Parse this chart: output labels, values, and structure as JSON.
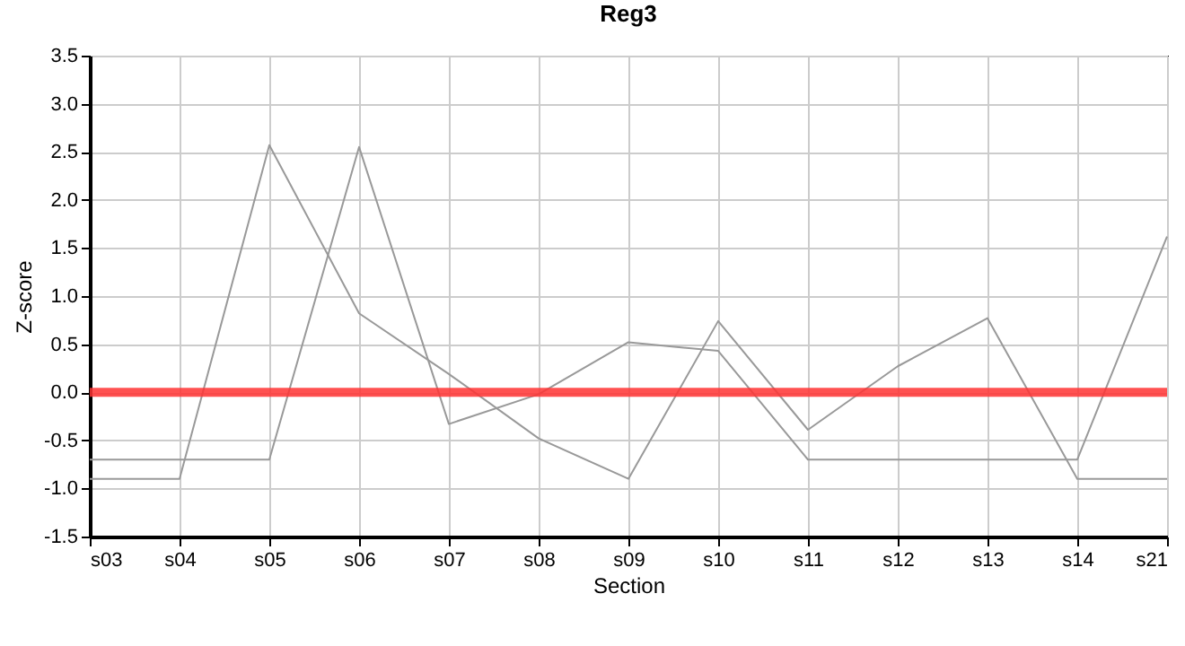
{
  "chart_data": {
    "type": "line",
    "title": "Reg3",
    "xlabel": "Section",
    "ylabel": "Z-score",
    "categories": [
      "s03",
      "s04",
      "s05",
      "s06",
      "s07",
      "s08",
      "s09",
      "s10",
      "s11",
      "s12",
      "s13",
      "s14",
      "s21"
    ],
    "series": [
      {
        "color": "#999999",
        "values": [
          -0.9,
          -0.9,
          2.57,
          0.82,
          0.19,
          -0.48,
          -0.9,
          0.74,
          -0.39,
          0.27,
          0.77,
          -0.9,
          -0.9
        ]
      },
      {
        "color": "#999999",
        "values": [
          -0.7,
          -0.7,
          -0.7,
          2.55,
          -0.33,
          -0.02,
          0.52,
          0.43,
          -0.7,
          -0.7,
          -0.7,
          -0.7,
          1.62
        ]
      }
    ],
    "ylim": [
      -1.5,
      3.5
    ],
    "yticks": [
      {
        "value": -1.5,
        "label": "-1.5"
      },
      {
        "value": -1,
        "label": "-1.0"
      },
      -0.5,
      {
        "value": 0,
        "label": "0.0"
      },
      0.5,
      {
        "value": 1,
        "label": "1.0"
      },
      1.5,
      {
        "value": 2,
        "label": "2.0"
      },
      2.5,
      {
        "value": 3,
        "label": "3.0"
      },
      3.5
    ],
    "ref_lines": [
      {
        "axis": "y",
        "value": 0,
        "color": "#ff3333"
      }
    ],
    "grid": true,
    "line_style": "solid"
  }
}
